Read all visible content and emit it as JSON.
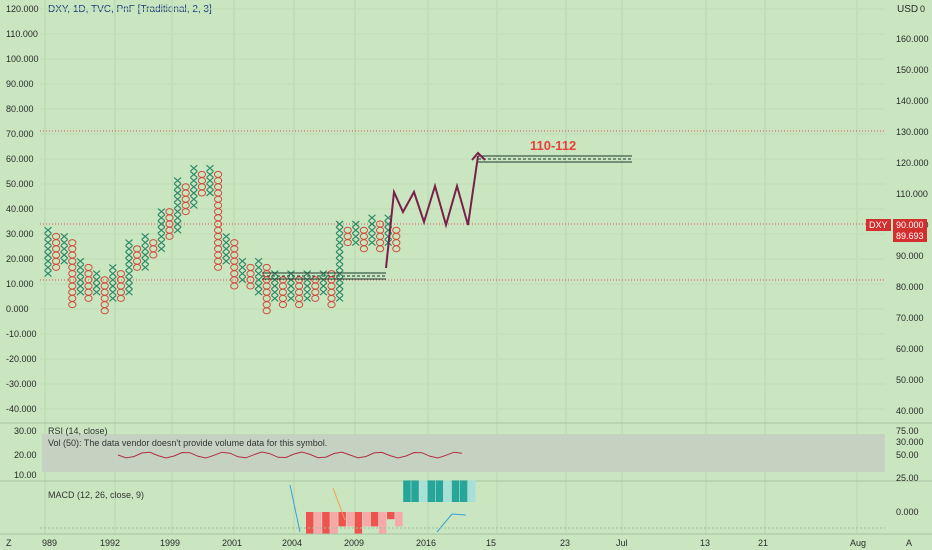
{
  "header": {
    "symbol_title": "DXY, 1D, TVC, PnF [Traditional, 2, 3]",
    "currency": "USD",
    "currency_suffix": "0"
  },
  "left_axis": [
    "120.000",
    "110.000",
    "100.000",
    "90.000",
    "80.000",
    "70.000",
    "60.000",
    "50.000",
    "40.000",
    "30.000",
    "20.000",
    "10.000",
    "0.000",
    "-10.000",
    "-20.000",
    "-30.000",
    "-40.000"
  ],
  "right_axis": [
    "160.000",
    "150.000",
    "140.000",
    "130.000",
    "120.000",
    "110.000",
    "100.000",
    "90.000",
    "80.000",
    "70.000",
    "60.000",
    "50.000",
    "40.000",
    "30.000"
  ],
  "rsi_axis": [
    "30.00",
    "20.00",
    "10.00"
  ],
  "rsi_right_axis": [
    "75.00",
    "50.00",
    "25.00"
  ],
  "macd_right_axis": "0.000",
  "date_axis": [
    "989",
    "1992",
    "1999",
    "2001",
    "2004",
    "2009",
    "2016",
    "15",
    "23",
    "Jul",
    "13",
    "21",
    "Aug",
    "A"
  ],
  "corner": {
    "left": "Z",
    "right": "A"
  },
  "price_tag": {
    "label": "DXY",
    "value": "90.000",
    "sub": "89.693",
    "color": "#d32f2f"
  },
  "annotation": {
    "target": "110-112",
    "color": "#e8413a"
  },
  "indicators": {
    "rsi_label": "RSI (14, close)",
    "vol_label": "Vol (50): The data vendor doesn't provide volume data for this symbol.",
    "macd_label": "MACD (12, 26, close, 9)"
  },
  "colors": {
    "background": "#c9e6c0",
    "x_color": "#2e8a68",
    "o_color": "#d14a3a",
    "arrow": "#7a1f4a",
    "rsi_line": "#b03040",
    "macd_up": "#26a69a",
    "macd_down": "#ef5350"
  },
  "chart_data": {
    "type": "pnf",
    "box_size": 2,
    "reversal": 3,
    "columns": [
      {
        "kind": "X",
        "lo": 84,
        "hi": 98
      },
      {
        "kind": "O",
        "lo": 86,
        "hi": 96
      },
      {
        "kind": "X",
        "lo": 88,
        "hi": 96
      },
      {
        "kind": "O",
        "lo": 74,
        "hi": 94
      },
      {
        "kind": "X",
        "lo": 78,
        "hi": 88
      },
      {
        "kind": "O",
        "lo": 76,
        "hi": 86
      },
      {
        "kind": "X",
        "lo": 78,
        "hi": 84
      },
      {
        "kind": "O",
        "lo": 72,
        "hi": 82
      },
      {
        "kind": "X",
        "lo": 76,
        "hi": 86
      },
      {
        "kind": "O",
        "lo": 76,
        "hi": 84
      },
      {
        "kind": "X",
        "lo": 78,
        "hi": 94
      },
      {
        "kind": "O",
        "lo": 86,
        "hi": 92
      },
      {
        "kind": "X",
        "lo": 86,
        "hi": 96
      },
      {
        "kind": "O",
        "lo": 90,
        "hi": 94
      },
      {
        "kind": "X",
        "lo": 92,
        "hi": 104
      },
      {
        "kind": "O",
        "lo": 96,
        "hi": 104
      },
      {
        "kind": "X",
        "lo": 98,
        "hi": 114
      },
      {
        "kind": "O",
        "lo": 104,
        "hi": 112
      },
      {
        "kind": "X",
        "lo": 106,
        "hi": 118
      },
      {
        "kind": "O",
        "lo": 110,
        "hi": 116
      },
      {
        "kind": "X",
        "lo": 110,
        "hi": 118
      },
      {
        "kind": "O",
        "lo": 86,
        "hi": 116
      },
      {
        "kind": "X",
        "lo": 88,
        "hi": 96
      },
      {
        "kind": "O",
        "lo": 80,
        "hi": 94
      },
      {
        "kind": "X",
        "lo": 82,
        "hi": 88
      },
      {
        "kind": "O",
        "lo": 80,
        "hi": 86
      },
      {
        "kind": "X",
        "lo": 78,
        "hi": 88
      },
      {
        "kind": "O",
        "lo": 72,
        "hi": 86
      },
      {
        "kind": "X",
        "lo": 76,
        "hi": 84
      },
      {
        "kind": "O",
        "lo": 74,
        "hi": 82
      },
      {
        "kind": "X",
        "lo": 76,
        "hi": 84
      },
      {
        "kind": "O",
        "lo": 74,
        "hi": 82
      },
      {
        "kind": "X",
        "lo": 76,
        "hi": 84
      },
      {
        "kind": "O",
        "lo": 76,
        "hi": 82
      },
      {
        "kind": "X",
        "lo": 78,
        "hi": 84
      },
      {
        "kind": "O",
        "lo": 74,
        "hi": 84
      },
      {
        "kind": "X",
        "lo": 76,
        "hi": 100
      },
      {
        "kind": "O",
        "lo": 94,
        "hi": 98
      },
      {
        "kind": "X",
        "lo": 94,
        "hi": 100
      },
      {
        "kind": "O",
        "lo": 92,
        "hi": 98
      },
      {
        "kind": "X",
        "lo": 94,
        "hi": 102
      },
      {
        "kind": "O",
        "lo": 92,
        "hi": 100
      },
      {
        "kind": "X",
        "lo": 94,
        "hi": 102
      },
      {
        "kind": "O",
        "lo": 92,
        "hi": 98
      }
    ],
    "annotation_target": [
      110,
      112
    ],
    "current_price": 90.0,
    "macd_hist": [
      -0.6,
      -0.6,
      -0.6,
      -0.6,
      -0.4,
      -0.4,
      -0.6,
      -0.4,
      -0.4,
      -0.6,
      -0.2,
      -0.4,
      0.6,
      0.6,
      0.6,
      0.6,
      0.6,
      0.6,
      0.6,
      0.6,
      0.6
    ]
  }
}
